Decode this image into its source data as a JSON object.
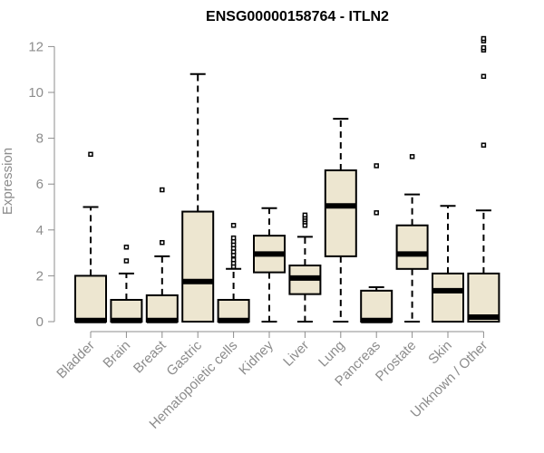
{
  "chart_data": {
    "type": "box",
    "title": "ENSG00000158764 - ITLN2",
    "xlabel": "",
    "ylabel": "Expression",
    "ylim": [
      0,
      12.6
    ],
    "yticks": [
      0,
      2,
      4,
      6,
      8,
      10,
      12
    ],
    "grid": false,
    "box_fill": "#ede6d0",
    "box_stroke": "#000000",
    "categories": [
      "Bladder",
      "Brain",
      "Breast",
      "Gastric",
      "Hematopoietic cells",
      "Kidney",
      "Liver",
      "Lung",
      "Pancreas",
      "Prostate",
      "Skin",
      "Unknown / Other"
    ],
    "boxes": [
      {
        "category": "Bladder",
        "whisker_low": 0,
        "q1": 0,
        "median": 0.05,
        "q3": 2.0,
        "whisker_high": 5.0,
        "outliers": [
          7.3
        ]
      },
      {
        "category": "Brain",
        "whisker_low": 0,
        "q1": 0,
        "median": 0.05,
        "q3": 0.95,
        "whisker_high": 2.1,
        "outliers": [
          2.65,
          3.25
        ]
      },
      {
        "category": "Breast",
        "whisker_low": 0,
        "q1": 0,
        "median": 0.05,
        "q3": 1.15,
        "whisker_high": 2.85,
        "outliers": [
          3.45,
          5.75
        ]
      },
      {
        "category": "Gastric",
        "whisker_low": 0,
        "q1": 0,
        "median": 1.75,
        "q3": 4.8,
        "whisker_high": 10.8,
        "outliers": []
      },
      {
        "category": "Hematopoietic cells",
        "whisker_low": 0,
        "q1": 0,
        "median": 0.05,
        "q3": 0.95,
        "whisker_high": 2.3,
        "outliers": [
          2.4,
          2.55,
          2.7,
          2.9,
          3.05,
          3.2,
          3.35,
          3.5,
          3.65,
          4.2
        ]
      },
      {
        "category": "Kidney",
        "whisker_low": 0,
        "q1": 2.15,
        "median": 2.95,
        "q3": 3.75,
        "whisker_high": 4.95,
        "outliers": []
      },
      {
        "category": "Liver",
        "whisker_low": 0,
        "q1": 1.2,
        "median": 1.9,
        "q3": 2.45,
        "whisker_high": 3.7,
        "outliers": [
          4.2,
          4.35,
          4.45,
          4.55,
          4.65
        ]
      },
      {
        "category": "Lung",
        "whisker_low": 0,
        "q1": 2.85,
        "median": 5.05,
        "q3": 6.6,
        "whisker_high": 8.85,
        "outliers": []
      },
      {
        "category": "Pancreas",
        "whisker_low": 0,
        "q1": 0,
        "median": 0.05,
        "q3": 1.35,
        "whisker_high": 1.5,
        "outliers": [
          4.75,
          6.8
        ]
      },
      {
        "category": "Prostate",
        "whisker_low": 0,
        "q1": 2.3,
        "median": 2.95,
        "q3": 4.2,
        "whisker_high": 5.55,
        "outliers": [
          7.2
        ]
      },
      {
        "category": "Skin",
        "whisker_low": 0,
        "q1": 0,
        "median": 1.35,
        "q3": 2.1,
        "whisker_high": 5.05,
        "outliers": []
      },
      {
        "category": "Unknown / Other",
        "whisker_low": 0,
        "q1": 0,
        "median": 0.2,
        "q3": 2.1,
        "whisker_high": 4.85,
        "outliers": [
          7.7,
          10.7,
          11.85,
          11.95,
          12.25,
          12.35
        ]
      }
    ]
  }
}
